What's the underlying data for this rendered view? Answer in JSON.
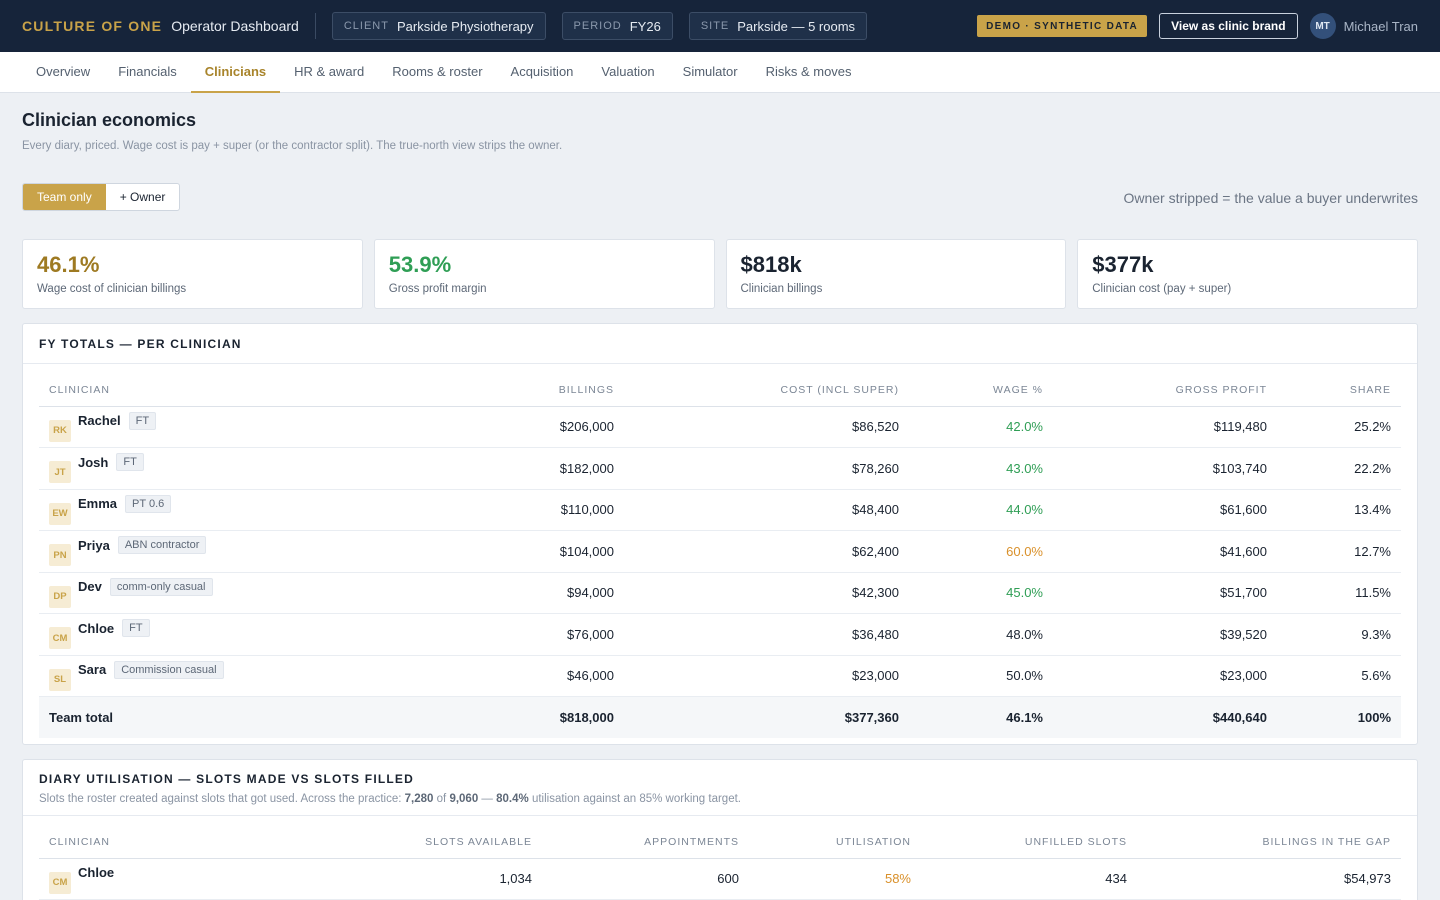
{
  "topbar": {
    "brand": "CULTURE OF ONE",
    "app_title": "Operator Dashboard",
    "pills": [
      {
        "key": "CLIENT",
        "value": "Parkside Physiotherapy"
      },
      {
        "key": "PERIOD",
        "value": "FY26"
      },
      {
        "key": "SITE",
        "value": "Parkside — 5 rooms"
      }
    ],
    "demo_badge": "DEMO · SYNTHETIC DATA",
    "brand_button": "View as clinic brand",
    "user_initials": "MT",
    "user_name": "Michael Tran"
  },
  "nav": {
    "items": [
      "Overview",
      "Financials",
      "Clinicians",
      "HR & award",
      "Rooms & roster",
      "Acquisition",
      "Valuation",
      "Simulator",
      "Risks & moves"
    ],
    "active": "Clinicians"
  },
  "page": {
    "title": "Clinician economics",
    "subtitle": "Every diary, priced. Wage cost is pay + super (or the contractor split). The true-north view strips the owner.",
    "toggle": {
      "on": "Team only",
      "off": "+ Owner"
    },
    "toggle_note": "Owner stripped = the value a buyer underwrites"
  },
  "kpis": [
    {
      "value": "46.1%",
      "label": "Wage cost of clinician billings",
      "color": "#9e7a22"
    },
    {
      "value": "53.9%",
      "label": "Gross profit margin",
      "color": "#2f9e55"
    },
    {
      "value": "$818k",
      "label": "Clinician billings",
      "color": "#1a2330"
    },
    {
      "value": "$377k",
      "label": "Clinician cost (pay + super)",
      "color": "#1a2330"
    }
  ],
  "fy_table": {
    "title": "FY TOTALS — PER CLINICIAN",
    "headers": [
      "CLINICIAN",
      "BILLINGS",
      "COST (INCL SUPER)",
      "WAGE %",
      "GROSS PROFIT",
      "SHARE"
    ],
    "rows": [
      {
        "initials": "RK",
        "name": "Rachel",
        "tag": "FT",
        "billings": "$206,000",
        "cost": "$86,520",
        "wage": "42.0%",
        "wage_color": "#2f9e55",
        "gp": "$119,480",
        "share": "25.2%"
      },
      {
        "initials": "JT",
        "name": "Josh",
        "tag": "FT",
        "billings": "$182,000",
        "cost": "$78,260",
        "wage": "43.0%",
        "wage_color": "#2f9e55",
        "gp": "$103,740",
        "share": "22.2%"
      },
      {
        "initials": "EW",
        "name": "Emma",
        "tag": "PT 0.6",
        "billings": "$110,000",
        "cost": "$48,400",
        "wage": "44.0%",
        "wage_color": "#2f9e55",
        "gp": "$61,600",
        "share": "13.4%"
      },
      {
        "initials": "PN",
        "name": "Priya",
        "tag": "ABN contractor",
        "billings": "$104,000",
        "cost": "$62,400",
        "wage": "60.0%",
        "wage_color": "#d9902a",
        "gp": "$41,600",
        "share": "12.7%"
      },
      {
        "initials": "DP",
        "name": "Dev",
        "tag": "comm-only casual",
        "billings": "$94,000",
        "cost": "$42,300",
        "wage": "45.0%",
        "wage_color": "#2f9e55",
        "gp": "$51,700",
        "share": "11.5%"
      },
      {
        "initials": "CM",
        "name": "Chloe",
        "tag": "FT",
        "billings": "$76,000",
        "cost": "$36,480",
        "wage": "48.0%",
        "wage_color": "#1a2330",
        "gp": "$39,520",
        "share": "9.3%"
      },
      {
        "initials": "SL",
        "name": "Sara",
        "tag": "Commission casual",
        "billings": "$46,000",
        "cost": "$23,000",
        "wage": "50.0%",
        "wage_color": "#1a2330",
        "gp": "$23,000",
        "share": "5.6%"
      }
    ],
    "total": {
      "label": "Team total",
      "billings": "$818,000",
      "cost": "$377,360",
      "wage": "46.1%",
      "gp": "$440,640",
      "share": "100%"
    }
  },
  "util_table": {
    "title": "DIARY UTILISATION — SLOTS MADE VS SLOTS FILLED",
    "sub_pre": "Slots the roster created against slots that got used. Across the practice:",
    "sub_a": "7,280",
    "sub_of": "of",
    "sub_b": "9,060",
    "sub_dash": "—",
    "sub_c": "80.4%",
    "sub_post": "utilisation against an 85% working target.",
    "headers": [
      "CLINICIAN",
      "SLOTS AVAILABLE",
      "APPOINTMENTS",
      "UTILISATION",
      "UNFILLED SLOTS",
      "BILLINGS IN THE GAP"
    ],
    "rows": [
      {
        "initials": "CM",
        "name": "Chloe",
        "slots": "1,034",
        "appts": "600",
        "util": "58%",
        "util_color": "#d9902a",
        "unfilled": "434",
        "gap": "$54,973"
      }
    ]
  }
}
